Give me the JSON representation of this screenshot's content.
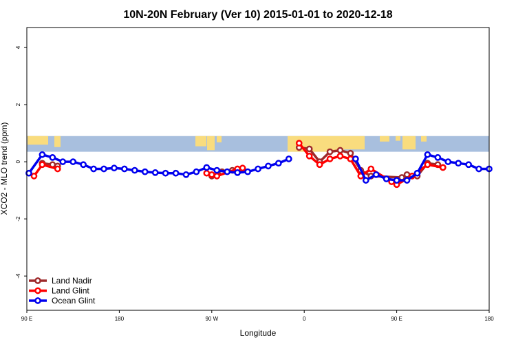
{
  "chart_data": {
    "type": "line",
    "title": "10N-20N February (Ver 10)   2015-01-01 to 2020-12-18",
    "xlabel": "Longitude",
    "ylabel": "XCO2 - MLO trend (ppm)",
    "xlim": [
      -90,
      360
    ],
    "ylim": [
      -5.2,
      4.7
    ],
    "x_ticks": [
      {
        "value": -90,
        "label": "90 E"
      },
      {
        "value": 0,
        "label": "180"
      },
      {
        "value": 90,
        "label": "90 W"
      },
      {
        "value": 180,
        "label": "0"
      },
      {
        "value": 270,
        "label": "90 E"
      },
      {
        "value": 360,
        "label": "180"
      }
    ],
    "y_ticks": [
      {
        "value": -4,
        "label": "-4"
      },
      {
        "value": -2,
        "label": "-2"
      },
      {
        "value": 0,
        "label": "0"
      },
      {
        "value": 2,
        "label": "2"
      },
      {
        "value": 4,
        "label": "4"
      }
    ],
    "legend_position": "bottom-left",
    "background_map": {
      "ymin": 0.35,
      "ymax": 0.9,
      "ocean_color": "#a8bfde",
      "land_color": "#f9dc7e"
    },
    "series": [
      {
        "name": "Land Nadir",
        "color": "#9e2a2b",
        "segments": [
          [
            [
              -75,
              -0.05
            ],
            [
              -65,
              -0.1
            ],
            [
              -60,
              -0.15
            ]
          ],
          [
            [
              90,
              -0.5
            ],
            [
              100,
              -0.35
            ],
            [
              110,
              -0.3
            ],
            [
              115,
              -0.3
            ],
            [
              120,
              -0.25
            ]
          ],
          [
            [
              175,
              0.5
            ],
            [
              185,
              0.45
            ],
            [
              195,
              0.0
            ],
            [
              205,
              0.35
            ],
            [
              215,
              0.4
            ],
            [
              225,
              0.3
            ],
            [
              235,
              -0.3
            ],
            [
              245,
              -0.5
            ],
            [
              275,
              -0.55
            ],
            [
              280,
              -0.45
            ],
            [
              290,
              -0.5
            ],
            [
              300,
              -0.05
            ],
            [
              310,
              -0.1
            ],
            [
              315,
              -0.2
            ]
          ]
        ]
      },
      {
        "name": "Land Glint",
        "color": "#ff0000",
        "segments": [
          [
            [
              -83,
              -0.5
            ],
            [
              -75,
              -0.1
            ],
            [
              -60,
              -0.25
            ]
          ],
          [
            [
              85,
              -0.4
            ],
            [
              90,
              -0.45
            ],
            [
              95,
              -0.5
            ],
            [
              115,
              -0.25
            ],
            [
              120,
              -0.22
            ]
          ],
          [
            [
              175,
              0.65
            ],
            [
              185,
              0.2
            ],
            [
              195,
              -0.1
            ],
            [
              205,
              0.1
            ],
            [
              215,
              0.2
            ],
            [
              225,
              0.1
            ],
            [
              235,
              -0.5
            ],
            [
              245,
              -0.25
            ],
            [
              265,
              -0.7
            ],
            [
              270,
              -0.8
            ],
            [
              285,
              -0.5
            ],
            [
              300,
              -0.1
            ],
            [
              315,
              -0.2
            ]
          ]
        ]
      },
      {
        "name": "Ocean Glint",
        "color": "#0000ee",
        "segments": [
          [
            [
              -88,
              -0.4
            ],
            [
              -75,
              0.25
            ],
            [
              -65,
              0.15
            ],
            [
              -55,
              0.0
            ],
            [
              -45,
              0.0
            ],
            [
              -35,
              -0.1
            ],
            [
              -25,
              -0.25
            ],
            [
              -15,
              -0.25
            ],
            [
              -5,
              -0.22
            ],
            [
              5,
              -0.25
            ],
            [
              15,
              -0.3
            ],
            [
              25,
              -0.35
            ],
            [
              35,
              -0.38
            ],
            [
              45,
              -0.4
            ],
            [
              55,
              -0.4
            ],
            [
              65,
              -0.45
            ],
            [
              75,
              -0.35
            ],
            [
              85,
              -0.2
            ],
            [
              95,
              -0.3
            ],
            [
              105,
              -0.35
            ],
            [
              115,
              -0.38
            ],
            [
              125,
              -0.35
            ],
            [
              135,
              -0.25
            ],
            [
              145,
              -0.15
            ],
            [
              155,
              -0.05
            ],
            [
              165,
              0.1
            ]
          ],
          [
            [
              230,
              0.1
            ],
            [
              240,
              -0.65
            ],
            [
              250,
              -0.45
            ],
            [
              260,
              -0.6
            ],
            [
              270,
              -0.65
            ],
            [
              280,
              -0.65
            ],
            [
              290,
              -0.4
            ],
            [
              300,
              0.25
            ],
            [
              310,
              0.15
            ],
            [
              320,
              0.0
            ],
            [
              330,
              -0.05
            ],
            [
              340,
              -0.1
            ],
            [
              350,
              -0.25
            ],
            [
              360,
              -0.25
            ]
          ]
        ]
      }
    ]
  }
}
